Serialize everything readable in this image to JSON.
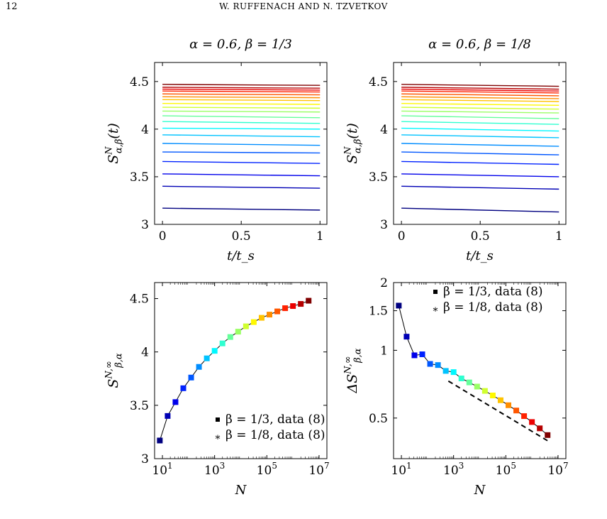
{
  "header": {
    "page_number": "12",
    "running_head": "W. RUFFENACH AND N. TZVETKOV"
  },
  "colors": {
    "jet_start": "#00008f",
    "jet_end": "#800000",
    "dashed": "#000000"
  },
  "chart_data": [
    {
      "type": "line",
      "title": "α = 0.6,  β = 1/3",
      "xlabel": "t/t_s",
      "ylabel": "S^N_{α,β}(t)",
      "xlim": [
        -0.05,
        1.0
      ],
      "ylim": [
        3.0,
        4.7
      ],
      "xticks": [
        0,
        0.5,
        1
      ],
      "xtick_labels": [
        "0",
        "0.5",
        "1"
      ],
      "yticks": [
        3,
        3.5,
        4,
        4.5
      ],
      "ytick_labels": [
        "3",
        "3.5",
        "4",
        "4.5"
      ],
      "series": [
        {
          "values": [
            3.17,
            3.15
          ]
        },
        {
          "values": [
            3.4,
            3.38
          ]
        },
        {
          "values": [
            3.53,
            3.51
          ]
        },
        {
          "values": [
            3.66,
            3.64
          ]
        },
        {
          "values": [
            3.76,
            3.75
          ]
        },
        {
          "values": [
            3.85,
            3.83
          ]
        },
        {
          "values": [
            3.94,
            3.92
          ]
        },
        {
          "values": [
            4.01,
            4.0
          ]
        },
        {
          "values": [
            4.08,
            4.06
          ]
        },
        {
          "values": [
            4.14,
            4.12
          ]
        },
        {
          "values": [
            4.19,
            4.18
          ]
        },
        {
          "values": [
            4.23,
            4.22
          ]
        },
        {
          "values": [
            4.27,
            4.26
          ]
        },
        {
          "values": [
            4.31,
            4.3
          ]
        },
        {
          "values": [
            4.34,
            4.33
          ]
        },
        {
          "values": [
            4.37,
            4.36
          ]
        },
        {
          "values": [
            4.4,
            4.39
          ]
        },
        {
          "values": [
            4.42,
            4.41
          ]
        },
        {
          "values": [
            4.44,
            4.43
          ]
        },
        {
          "values": [
            4.47,
            4.46
          ]
        }
      ]
    },
    {
      "type": "line",
      "title": "α = 0.6,  β = 1/8",
      "xlabel": "t/t_s",
      "ylabel": "S^N_{α,β}(t)",
      "xlim": [
        -0.05,
        1.0
      ],
      "ylim": [
        3.0,
        4.7
      ],
      "xticks": [
        0,
        0.5,
        1
      ],
      "xtick_labels": [
        "0",
        "0.5",
        "1"
      ],
      "yticks": [
        3,
        3.5,
        4,
        4.5
      ],
      "ytick_labels": [
        "3",
        "3.5",
        "4",
        "4.5"
      ],
      "series": [
        {
          "values": [
            3.17,
            3.13
          ]
        },
        {
          "values": [
            3.4,
            3.37
          ]
        },
        {
          "values": [
            3.53,
            3.5
          ]
        },
        {
          "values": [
            3.66,
            3.63
          ]
        },
        {
          "values": [
            3.76,
            3.73
          ]
        },
        {
          "values": [
            3.85,
            3.82
          ]
        },
        {
          "values": [
            3.94,
            3.91
          ]
        },
        {
          "values": [
            4.01,
            3.98
          ]
        },
        {
          "values": [
            4.08,
            4.05
          ]
        },
        {
          "values": [
            4.14,
            4.11
          ]
        },
        {
          "values": [
            4.19,
            4.17
          ]
        },
        {
          "values": [
            4.23,
            4.21
          ]
        },
        {
          "values": [
            4.27,
            4.25
          ]
        },
        {
          "values": [
            4.31,
            4.29
          ]
        },
        {
          "values": [
            4.34,
            4.32
          ]
        },
        {
          "values": [
            4.37,
            4.35
          ]
        },
        {
          "values": [
            4.4,
            4.38
          ]
        },
        {
          "values": [
            4.42,
            4.4
          ]
        },
        {
          "values": [
            4.44,
            4.42
          ]
        },
        {
          "values": [
            4.47,
            4.45
          ]
        }
      ]
    },
    {
      "type": "scatter",
      "xlabel": "N",
      "ylabel": "S^{N,∞}_{β,α}",
      "x_scale": "log",
      "xlim_log10": [
        0.7,
        7.3
      ],
      "ylim": [
        3.0,
        4.65
      ],
      "xticks_log10": [
        1,
        3,
        5,
        7
      ],
      "xtick_labels": [
        "10",
        "10",
        "10",
        "10"
      ],
      "xtick_exponents": [
        "1",
        "3",
        "5",
        "7"
      ],
      "yticks": [
        3,
        3.5,
        4,
        4.5
      ],
      "ytick_labels": [
        "3",
        "3.5",
        "4",
        "4.5"
      ],
      "legend": [
        "β = 1/3, data (8)",
        "β = 1/8, data (8)"
      ],
      "legend_position": "bottom-right",
      "x_log10": [
        0.9,
        1.2,
        1.5,
        1.8,
        2.1,
        2.4,
        2.7,
        3.0,
        3.3,
        3.6,
        3.9,
        4.2,
        4.5,
        4.8,
        5.1,
        5.4,
        5.7,
        6.0,
        6.3,
        6.6
      ],
      "values": [
        3.17,
        3.4,
        3.53,
        3.66,
        3.76,
        3.86,
        3.94,
        4.01,
        4.08,
        4.14,
        4.19,
        4.24,
        4.28,
        4.32,
        4.35,
        4.38,
        4.41,
        4.43,
        4.45,
        4.48
      ]
    },
    {
      "type": "scatter",
      "xlabel": "N",
      "ylabel": "ΔS^{N,∞}_{β,α}",
      "x_scale": "log",
      "y_scale": "log",
      "xlim_log10": [
        0.7,
        7.3
      ],
      "ylim": [
        0.33,
        2.0
      ],
      "xticks_log10": [
        1,
        3,
        5,
        7
      ],
      "xtick_labels": [
        "10",
        "10",
        "10",
        "10"
      ],
      "xtick_exponents": [
        "1",
        "3",
        "5",
        "7"
      ],
      "yticks": [
        0.5,
        1,
        1.5,
        2
      ],
      "ytick_labels": [
        "0.5",
        "1",
        "1.5",
        "2"
      ],
      "legend": [
        "β = 1/3, data (8)",
        "β = 1/8, data (8)"
      ],
      "legend_position": "top-right",
      "x_log10": [
        0.9,
        1.2,
        1.5,
        1.8,
        2.1,
        2.4,
        2.7,
        3.0,
        3.3,
        3.6,
        3.9,
        4.2,
        4.5,
        4.8,
        5.1,
        5.4,
        5.7,
        6.0,
        6.3,
        6.6
      ],
      "values": [
        1.58,
        1.15,
        0.95,
        0.96,
        0.87,
        0.86,
        0.81,
        0.8,
        0.75,
        0.72,
        0.69,
        0.66,
        0.63,
        0.6,
        0.57,
        0.54,
        0.51,
        0.48,
        0.45,
        0.42
      ],
      "reference_line": {
        "x_log10": [
          2.8,
          6.7
        ],
        "values": [
          0.73,
          0.39
        ],
        "style": "dashed"
      }
    }
  ]
}
